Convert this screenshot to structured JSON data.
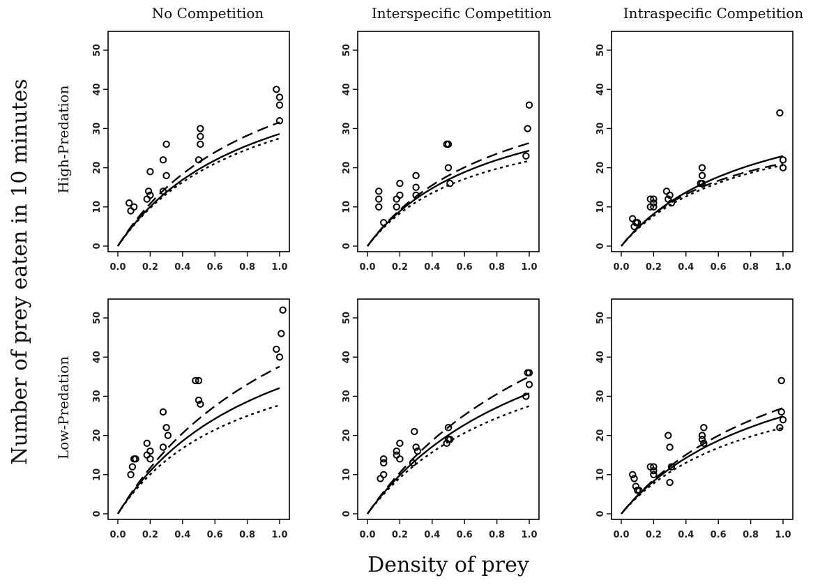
{
  "figure": {
    "xlabel": "Density of prey",
    "ylabel": "Number of prey eaten in 10 minutes",
    "column_titles": [
      "No Competition",
      "Interspecific Competition",
      "Intraspecific Competition"
    ],
    "row_labels": [
      "High-Predation",
      "Low-Predation"
    ]
  },
  "chart_data": [
    {
      "type": "scatter",
      "panel": "High-Predation / No Competition",
      "xlim": [
        0,
        1.0
      ],
      "ylim": [
        0,
        50
      ],
      "x_ticks": [
        "0.0",
        "0.2",
        "0.4",
        "0.6",
        "0.8",
        "1.0"
      ],
      "y_ticks": [
        "0",
        "10",
        "20",
        "30",
        "40",
        "50"
      ],
      "points": [
        [
          0.07,
          11
        ],
        [
          0.08,
          9
        ],
        [
          0.1,
          10
        ],
        [
          0.18,
          12
        ],
        [
          0.19,
          14
        ],
        [
          0.2,
          13
        ],
        [
          0.2,
          19
        ],
        [
          0.28,
          14
        ],
        [
          0.28,
          22
        ],
        [
          0.3,
          18
        ],
        [
          0.3,
          26
        ],
        [
          0.5,
          22
        ],
        [
          0.51,
          26
        ],
        [
          0.51,
          28
        ],
        [
          0.51,
          30
        ],
        [
          0.98,
          40
        ],
        [
          1.0,
          38
        ],
        [
          1.0,
          36
        ],
        [
          1.0,
          32
        ]
      ],
      "curves": {
        "dashed": {
          "a": 66,
          "h": 0.0165
        },
        "solid": {
          "a": 62,
          "h": 0.0188
        },
        "dotted": {
          "a": 60,
          "h": 0.0197
        }
      }
    },
    {
      "type": "scatter",
      "panel": "High-Predation / Interspecific Competition",
      "xlim": [
        0,
        1.0
      ],
      "ylim": [
        0,
        50
      ],
      "x_ticks": [
        "0.0",
        "0.2",
        "0.4",
        "0.6",
        "0.8",
        "1.0"
      ],
      "y_ticks": [
        "0",
        "10",
        "20",
        "30",
        "40",
        "50"
      ],
      "points": [
        [
          0.07,
          10
        ],
        [
          0.07,
          12
        ],
        [
          0.07,
          14
        ],
        [
          0.1,
          6
        ],
        [
          0.18,
          10
        ],
        [
          0.18,
          12
        ],
        [
          0.2,
          13
        ],
        [
          0.2,
          16
        ],
        [
          0.3,
          13
        ],
        [
          0.3,
          15
        ],
        [
          0.3,
          18
        ],
        [
          0.49,
          26
        ],
        [
          0.5,
          26
        ],
        [
          0.5,
          20
        ],
        [
          0.51,
          16
        ],
        [
          0.98,
          23
        ],
        [
          0.99,
          30
        ],
        [
          1.0,
          36
        ]
      ],
      "curves": {
        "dashed": {
          "a": 57,
          "h": 0.0205
        },
        "solid": {
          "a": 56,
          "h": 0.0232
        },
        "dotted": {
          "a": 54,
          "h": 0.0275
        }
      }
    },
    {
      "type": "scatter",
      "panel": "High-Predation / Intraspecific Competition",
      "xlim": [
        0,
        1.0
      ],
      "ylim": [
        0,
        50
      ],
      "x_ticks": [
        "0.0",
        "0.2",
        "0.4",
        "0.6",
        "0.8",
        "1.0"
      ],
      "y_ticks": [
        "0",
        "10",
        "20",
        "30",
        "40",
        "50"
      ],
      "points": [
        [
          0.07,
          7
        ],
        [
          0.08,
          5
        ],
        [
          0.09,
          6
        ],
        [
          0.1,
          6
        ],
        [
          0.18,
          10
        ],
        [
          0.18,
          12
        ],
        [
          0.2,
          11
        ],
        [
          0.2,
          12
        ],
        [
          0.2,
          10
        ],
        [
          0.28,
          14
        ],
        [
          0.29,
          12
        ],
        [
          0.3,
          13
        ],
        [
          0.31,
          11
        ],
        [
          0.49,
          16
        ],
        [
          0.5,
          18
        ],
        [
          0.5,
          20
        ],
        [
          0.5,
          16
        ],
        [
          0.98,
          34
        ],
        [
          1.0,
          22
        ],
        [
          1.0,
          20
        ]
      ],
      "curves": {
        "dashed": {
          "a": 53,
          "h": 0.0285
        },
        "solid": {
          "a": 51,
          "h": 0.0239
        },
        "dotted": {
          "a": 49,
          "h": 0.028
        }
      }
    },
    {
      "type": "scatter",
      "panel": "Low-Predation / No Competition",
      "xlim": [
        0,
        1.0
      ],
      "ylim": [
        0,
        50
      ],
      "x_ticks": [
        "0.0",
        "0.2",
        "0.4",
        "0.6",
        "0.8",
        "1.0"
      ],
      "y_ticks": [
        "0",
        "10",
        "20",
        "30",
        "40",
        "50"
      ],
      "points": [
        [
          0.08,
          10
        ],
        [
          0.09,
          12
        ],
        [
          0.1,
          14
        ],
        [
          0.11,
          14
        ],
        [
          0.18,
          15
        ],
        [
          0.18,
          18
        ],
        [
          0.2,
          16
        ],
        [
          0.2,
          14
        ],
        [
          0.28,
          26
        ],
        [
          0.28,
          17
        ],
        [
          0.3,
          22
        ],
        [
          0.31,
          20
        ],
        [
          0.48,
          34
        ],
        [
          0.5,
          34
        ],
        [
          0.5,
          29
        ],
        [
          0.51,
          28
        ],
        [
          0.98,
          42
        ],
        [
          1.0,
          40
        ],
        [
          1.01,
          46
        ],
        [
          1.02,
          52
        ]
      ],
      "curves": {
        "dashed": {
          "a": 68,
          "h": 0.0119
        },
        "solid": {
          "a": 66,
          "h": 0.016
        },
        "dotted": {
          "a": 63,
          "h": 0.0202
        }
      }
    },
    {
      "type": "scatter",
      "panel": "Low-Predation / Interspecific Competition",
      "xlim": [
        0,
        1.0
      ],
      "ylim": [
        0,
        50
      ],
      "x_ticks": [
        "0.0",
        "0.2",
        "0.4",
        "0.6",
        "0.8",
        "1.0"
      ],
      "y_ticks": [
        "0",
        "10",
        "20",
        "30",
        "40",
        "50"
      ],
      "points": [
        [
          0.08,
          9
        ],
        [
          0.1,
          10
        ],
        [
          0.1,
          14
        ],
        [
          0.1,
          13
        ],
        [
          0.18,
          15
        ],
        [
          0.18,
          16
        ],
        [
          0.2,
          14
        ],
        [
          0.2,
          18
        ],
        [
          0.28,
          13
        ],
        [
          0.29,
          21
        ],
        [
          0.3,
          17
        ],
        [
          0.31,
          16
        ],
        [
          0.49,
          18
        ],
        [
          0.5,
          19
        ],
        [
          0.5,
          22
        ],
        [
          0.51,
          19
        ],
        [
          0.98,
          30
        ],
        [
          0.99,
          36
        ],
        [
          1.0,
          33
        ],
        [
          1.0,
          36
        ]
      ],
      "curves": {
        "dashed": {
          "a": 60,
          "h": 0.0119
        },
        "solid": {
          "a": 58,
          "h": 0.0153
        },
        "dotted": {
          "a": 55,
          "h": 0.0182
        }
      }
    },
    {
      "type": "scatter",
      "panel": "Low-Predation / Intraspecific Competition",
      "xlim": [
        0,
        1.0
      ],
      "ylim": [
        0,
        50
      ],
      "x_ticks": [
        "0.0",
        "0.2",
        "0.4",
        "0.6",
        "0.8",
        "1.0"
      ],
      "y_ticks": [
        "0",
        "10",
        "20",
        "30",
        "40",
        "50"
      ],
      "points": [
        [
          0.07,
          10
        ],
        [
          0.08,
          9
        ],
        [
          0.09,
          7
        ],
        [
          0.1,
          6
        ],
        [
          0.11,
          6
        ],
        [
          0.18,
          12
        ],
        [
          0.2,
          12
        ],
        [
          0.2,
          10
        ],
        [
          0.2,
          11
        ],
        [
          0.29,
          20
        ],
        [
          0.3,
          17
        ],
        [
          0.3,
          8
        ],
        [
          0.31,
          12
        ],
        [
          0.5,
          20
        ],
        [
          0.5,
          19
        ],
        [
          0.51,
          18
        ],
        [
          0.51,
          22
        ],
        [
          0.98,
          22
        ],
        [
          0.99,
          26
        ],
        [
          0.99,
          34
        ],
        [
          1.0,
          24
        ]
      ],
      "curves": {
        "dashed": {
          "a": 51,
          "h": 0.0174
        },
        "solid": {
          "a": 50,
          "h": 0.0202
        },
        "dotted": {
          "a": 48,
          "h": 0.0247
        }
      }
    }
  ]
}
